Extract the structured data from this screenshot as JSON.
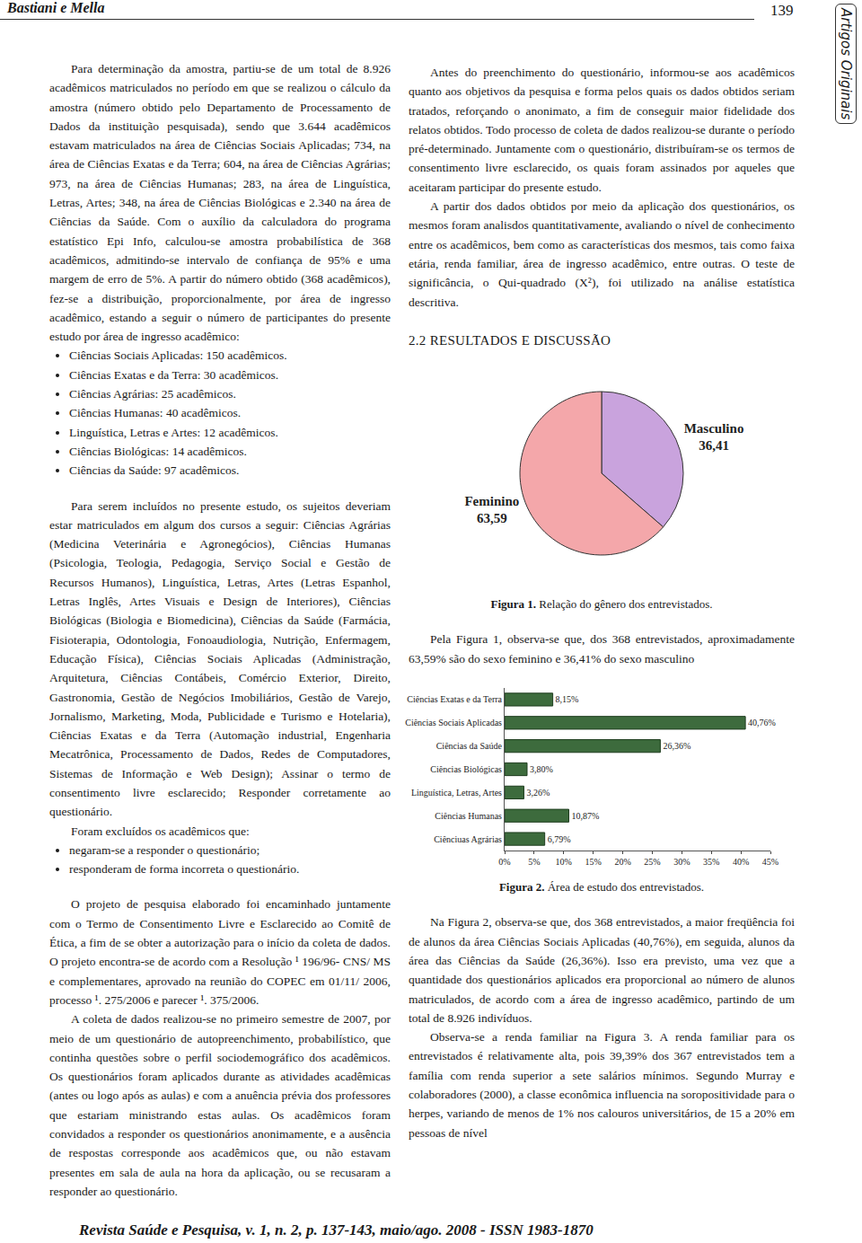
{
  "header": {
    "authors": "Bastiani e Mella",
    "page": "139",
    "section": "Artigos Originais"
  },
  "left_column": [
    {
      "type": "p",
      "text": "Para determinação da amostra, partiu-se de um total de 8.926 acadêmicos matriculados no período em que se realizou o cálculo da amostra (número obtido pelo Departamento de Processamento de Dados da instituição pesquisada), sendo que 3.644 acadêmicos estavam matriculados na área de Ciências Sociais Aplicadas; 734, na área de Ciências Exatas e da Terra; 604, na área de Ciências Agrárias; 973, na área de Ciências Humanas; 283, na área de Linguística, Letras, Artes; 348, na área de Ciências Biológicas e 2.340 na área de Ciências da Saúde. Com o auxílio da calculadora do programa estatístico Epi Info, calculou-se amostra probabilística de 368 acadêmicos, admitindo-se intervalo de confiança de 95% e uma margem de erro de 5%. A partir do número obtido (368 acadêmicos), fez-se a distribuição, proporcionalmente, por área de ingresso acadêmico, estando a seguir o número de participantes do presente estudo por área de ingresso acadêmico:"
    },
    {
      "type": "ul",
      "items": [
        "Ciências Sociais Aplicadas: 150 acadêmicos.",
        "Ciências Exatas e da Terra: 30 acadêmicos.",
        "Ciências Agrárias: 25 acadêmicos.",
        "Ciências Humanas: 40 acadêmicos.",
        "Linguística, Letras e Artes: 12 acadêmicos.",
        "Ciências Biológicas: 14 acadêmicos.",
        "Ciências da Saúde: 97 acadêmicos."
      ]
    },
    {
      "type": "p",
      "text": "Para serem incluídos no presente estudo, os sujeitos deveriam estar matriculados em algum dos cursos a seguir: Ciências Agrárias (Medicina Veterinária e Agronegócios), Ciências Humanas (Psicologia, Teologia, Pedagogia, Serviço Social e Gestão de Recursos Humanos), Linguística, Letras, Artes (Letras Espanhol, Letras Inglês, Artes Visuais e Design de Interiores), Ciências Biológicas (Biologia e Biomedicina), Ciências da Saúde (Farmácia, Fisioterapia, Odontologia, Fonoaudiologia, Nutrição, Enfermagem, Educação Física), Ciências Sociais Aplicadas (Administração, Arquitetura, Ciências Contábeis, Comércio Exterior, Direito, Gastronomia, Gestão de Negócios Imobiliários, Gestão de Varejo, Jornalismo, Marketing, Moda, Publicidade e Turismo e Hotelaria), Ciências Exatas e da Terra (Automação industrial, Engenharia Mecatrônica, Processamento de Dados, Redes de Computadores, Sistemas de Informação e Web Design); Assinar o termo de consentimento livre esclarecido; Responder corretamente ao questionário."
    },
    {
      "type": "p",
      "text": "Foram excluídos os acadêmicos que:"
    },
    {
      "type": "ul",
      "items": [
        "negaram-se a responder o questionário;",
        "responderam de forma incorreta o questionário."
      ]
    },
    {
      "type": "p",
      "text": "O projeto de pesquisa elaborado foi encaminhado juntamente com o Termo de Consentimento Livre e Esclarecido ao Comitê de Ética, a fim de se obter a autorização para o início da coleta de dados. O projeto encontra-se de acordo com a Resolução ¹ 196/96- CNS/ MS e complementares, aprovado na reunião do COPEC em 01/11/ 2006, processo ¹. 275/2006 e parecer ¹. 375/2006."
    },
    {
      "type": "p",
      "text": "A coleta de dados realizou-se no primeiro semestre de 2007, por meio de um questionário de autopreenchimento, probabilístico, que continha questões sobre o perfil sociodemográfico dos acadêmicos. Os questionários foram aplicados durante as atividades acadêmicas (antes ou logo após as aulas) e com a anuência prévia dos professores que estariam ministrando estas aulas. Os acadêmicos foram convidados a responder os questionários anonimamente, e a ausência de respostas corresponde aos acadêmicos que, ou não estavam presentes em sala de aula na hora da aplicação, ou se recusaram a responder ao questionário."
    }
  ],
  "right_column": [
    {
      "type": "p",
      "text": "Antes do preenchimento do questionário, informou-se aos acadêmicos quanto aos objetivos da pesquisa e forma pelos quais os dados obtidos seriam tratados, reforçando o anonimato, a fim de conseguir maior fidelidade dos relatos obtidos. Todo processo de coleta de dados realizou-se durante o período pré-determinado. Juntamente com o questionário, distribuíram-se os termos de consentimento livre esclarecido, os quais foram assinados por aqueles que aceitaram participar do presente estudo."
    },
    {
      "type": "p",
      "text": "A partir dos dados obtidos por meio da aplicação dos questionários, os mesmos foram analisdos quantitativamente, avaliando o nível de conhecimento entre os acadêmicos, bem como as características dos mesmos, tais como faixa etária, renda familiar, área de ingresso acadêmico, entre outras. O teste de significância, o Qui-quadrado (X²), foi utilizado na análise estatística descritiva."
    },
    {
      "type": "heading",
      "text": "2.2 RESULTADOS E DISCUSSÃO"
    },
    {
      "type": "figure",
      "caption_label": "Figura 1.",
      "caption": "Relação do gênero dos entrevistados."
    },
    {
      "type": "p",
      "text": "Pela Figura 1, observa-se que, dos 368 entrevistados, aproximadamente 63,59% são do sexo feminino e 36,41% do sexo masculino"
    },
    {
      "type": "figure",
      "caption_label": "Figura 2.",
      "caption": "Área de estudo dos entrevistados."
    },
    {
      "type": "p",
      "text": "Na Figura 2, observa-se que, dos 368 entrevistados, a maior freqüência foi de alunos da área Ciências Sociais Aplicadas (40,76%), em seguida, alunos da área das Ciências da Saúde (26,36%). Isso era previsto, uma vez que a quantidade dos questionários aplicados era proporcional ao número de alunos matriculados, de acordo com a área de ingresso acadêmico, partindo de um total de 8.926 indivíduos."
    },
    {
      "type": "p",
      "text": "Observa-se a renda familiar na Figura 3. A renda familiar para os entrevistados é relativamente alta, pois 39,39% dos 367 entrevistados tem a família com renda superior a sete salários mínimos. Segundo Murray e colaboradores (2000), a classe econômica influencia na soropositividade para o herpes, variando de menos de 1% nos calouros universitários, de 15 a 20% em pessoas de nível"
    }
  ],
  "footer": "Revista Saúde e Pesquisa, v. 1, n. 2, p. 137-143, maio/ago. 2008 - ISSN 1983-1870",
  "chart_data": [
    {
      "type": "pie",
      "categories": [
        "Masculino",
        "Feminino"
      ],
      "values": [
        36.41,
        63.59
      ],
      "value_labels": [
        "36,41",
        "63,59"
      ],
      "data_labels": true,
      "colors": [
        "#c9a3dd",
        "#f4a7aa"
      ]
    },
    {
      "type": "bar",
      "orientation": "horizontal",
      "categories": [
        "Ciências Exatas e da Terra",
        "Ciências Sociais Aplicadas",
        "Ciências da Saúde",
        "Ciências Biológicas",
        "Linguística, Letras, Artes",
        "Ciências Humanas",
        "Ciênciuas Agrárias"
      ],
      "values": [
        8.15,
        40.76,
        26.36,
        3.8,
        3.26,
        10.87,
        6.79
      ],
      "value_labels": [
        "8,15%",
        "40,76%",
        "26,36%",
        "3,80%",
        "3,26%",
        "10,87%",
        "6,79%"
      ],
      "data_labels": true,
      "color": "#3d6b3d",
      "grid": false,
      "xlim": [
        0,
        45
      ],
      "xticks": [
        {
          "value": 0,
          "label": "0%"
        },
        {
          "value": 5,
          "label": "5%"
        },
        {
          "value": 10,
          "label": "10%"
        },
        {
          "value": 15,
          "label": "15%"
        },
        {
          "value": 20,
          "label": "20%"
        },
        {
          "value": 25,
          "label": "25%"
        },
        {
          "value": 30,
          "label": "30%"
        },
        {
          "value": 35,
          "label": "35%"
        },
        {
          "value": 40,
          "label": "40%"
        },
        {
          "value": 45,
          "label": "45%"
        }
      ]
    }
  ]
}
